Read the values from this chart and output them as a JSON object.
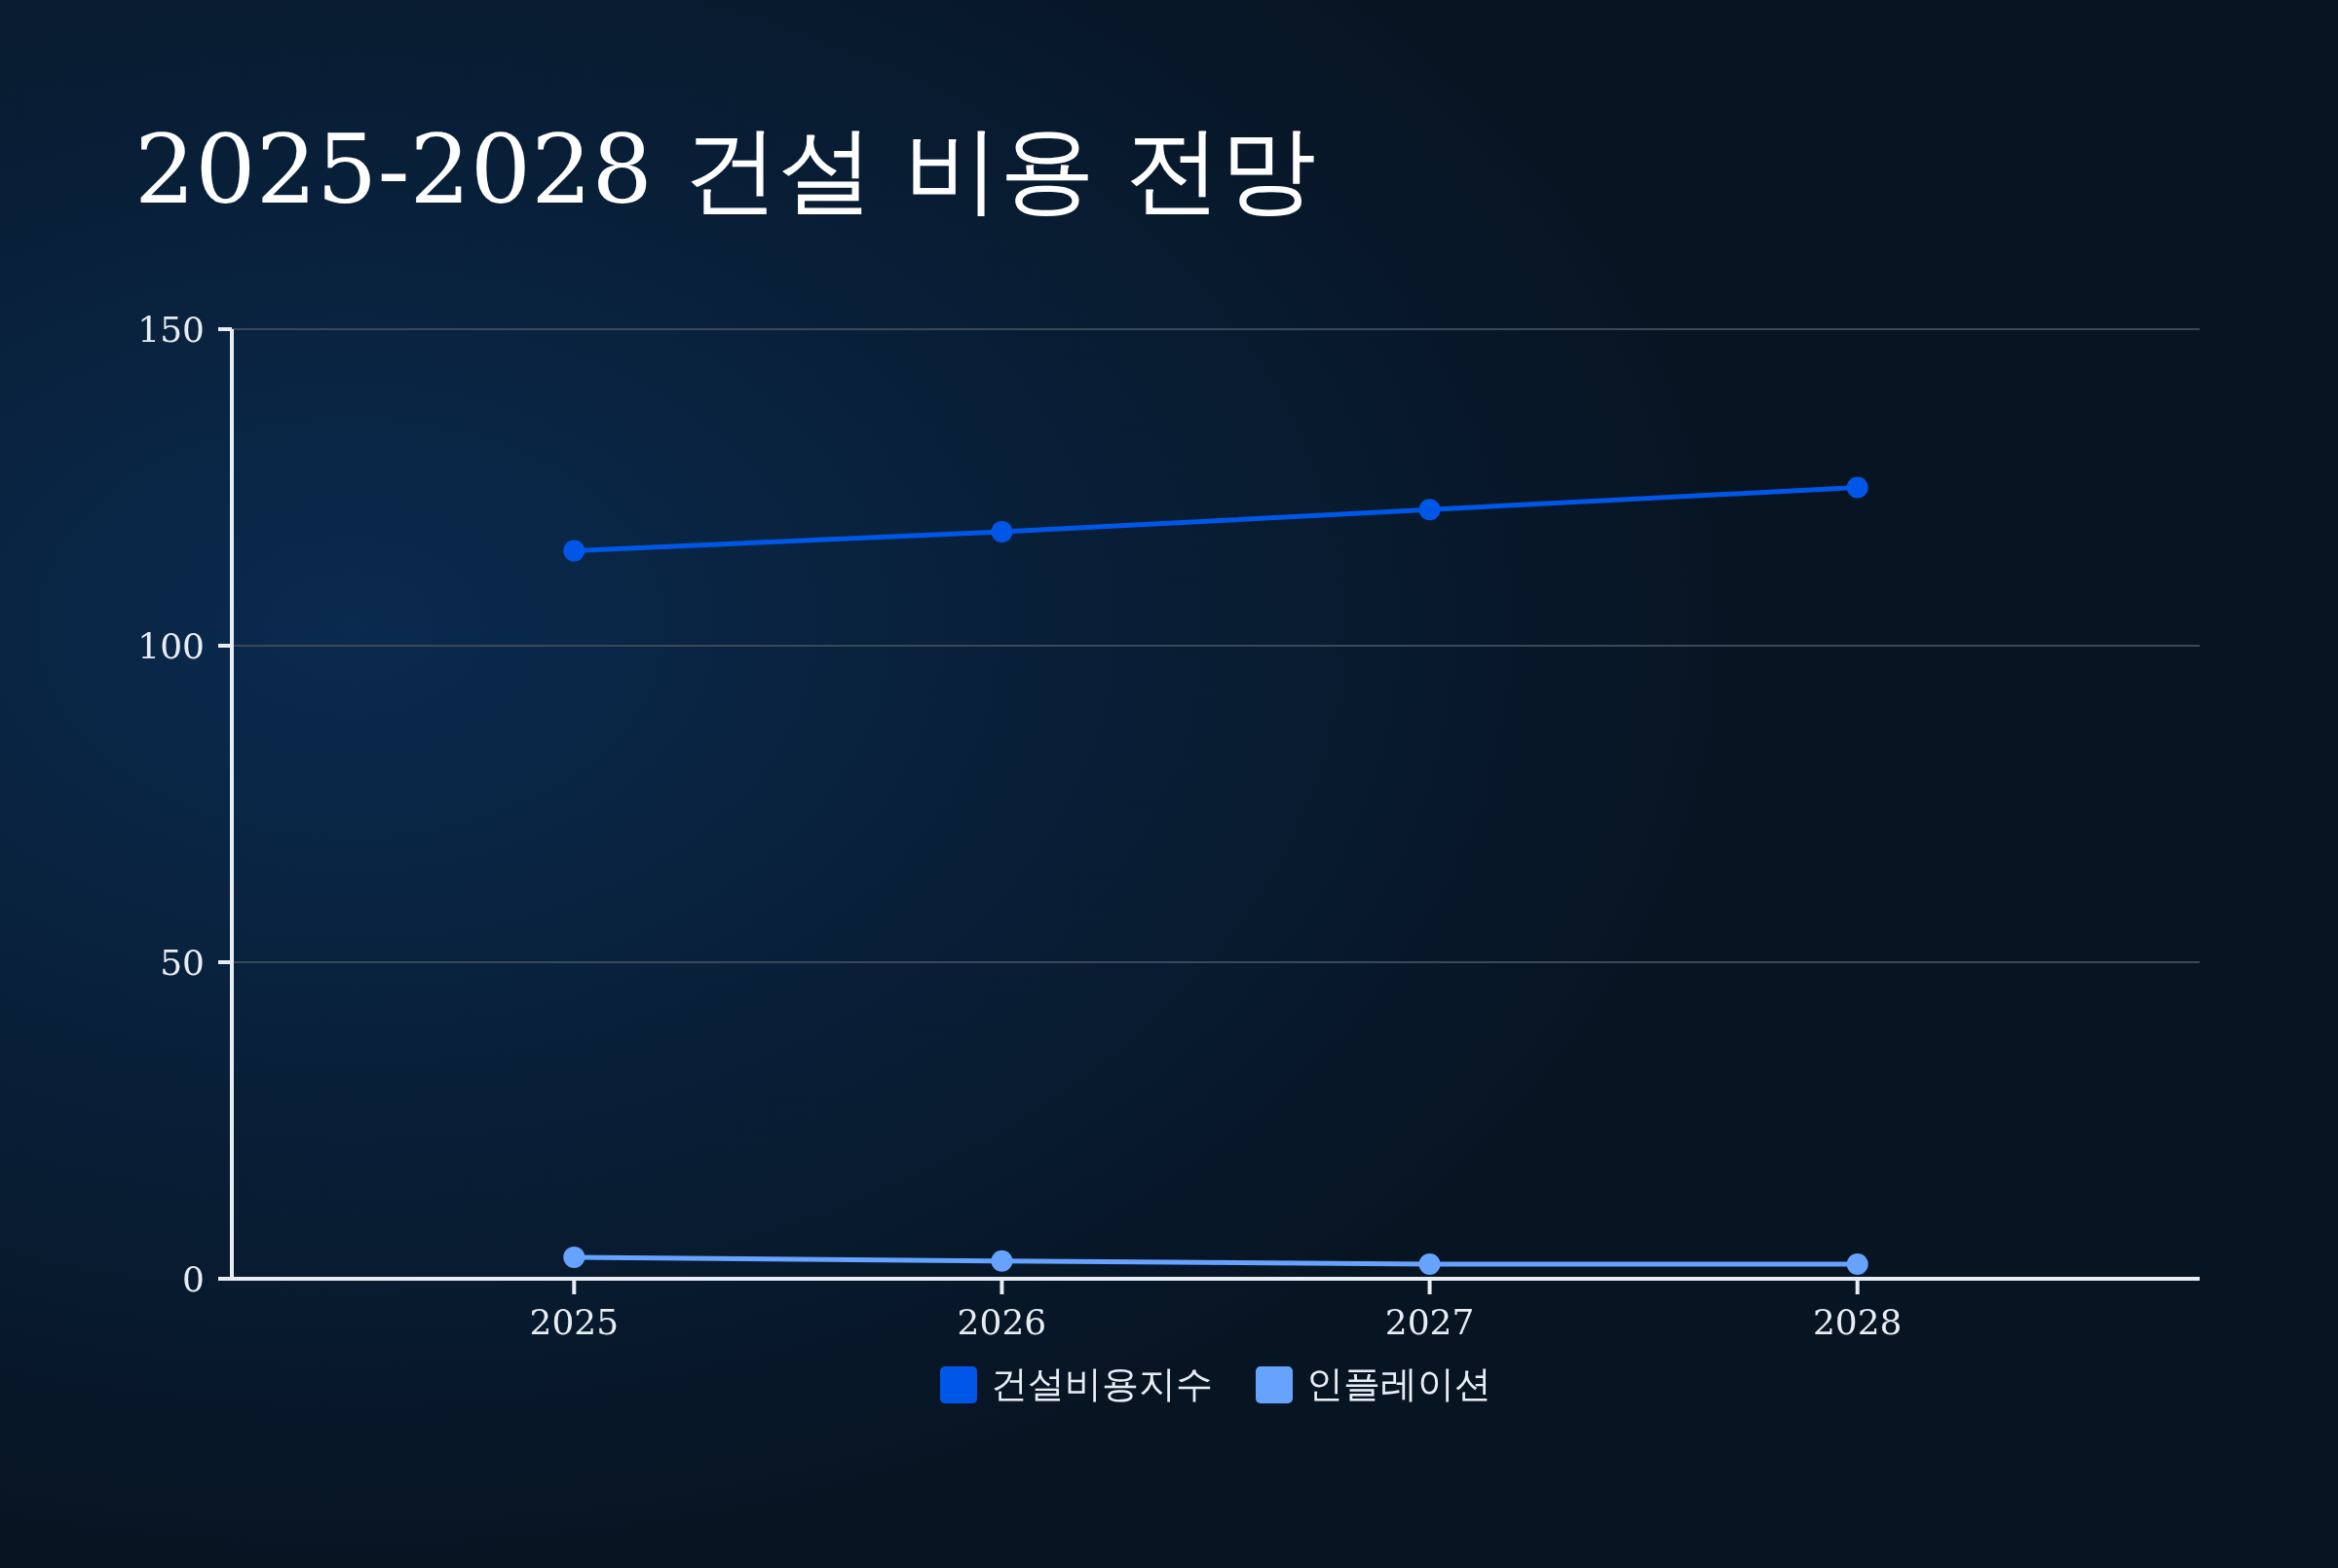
{
  "chart_data": {
    "type": "line",
    "title": "2025-2028 건설 비용 전망",
    "categories": [
      "2025",
      "2026",
      "2027",
      "2028"
    ],
    "series": [
      {
        "name": "건설비용지수",
        "color": "#0057e7",
        "values": [
          115,
          118,
          121.5,
          125
        ]
      },
      {
        "name": "인플레이션",
        "color": "#66a3ff",
        "values": [
          3.4,
          2.8,
          2.3,
          2.3
        ]
      }
    ],
    "ylim": [
      0,
      150
    ],
    "yticks": [
      0,
      50,
      100,
      150
    ],
    "grid": "y",
    "legend": "bottom",
    "marker": "circle",
    "line_style": "solid"
  }
}
